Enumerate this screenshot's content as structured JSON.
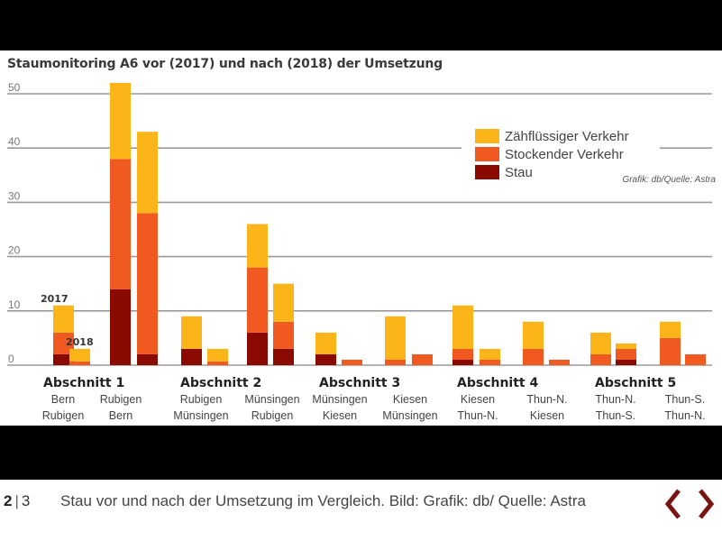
{
  "chart_data": {
    "type": "bar",
    "stacked": true,
    "title": "Staumonitoring A6 vor (2017) und nach (2018) der Umsetzung",
    "xlabel": "",
    "ylabel": "",
    "ylim": [
      0,
      50
    ],
    "yticks": [
      0,
      10,
      20,
      30,
      40,
      50
    ],
    "grid": true,
    "legend_position": "top-right",
    "source_note": "Grafik: db/Quelle: Astra",
    "year_labels": {
      "before": "2017",
      "after": "2018"
    },
    "series": [
      {
        "name": "Stau",
        "color": "#8b0a00"
      },
      {
        "name": "Stockender Verkehr",
        "color": "#f05a20"
      },
      {
        "name": "Zähflüssiger Verkehr",
        "color": "#fbb519"
      }
    ],
    "legend_order": [
      "Zähflüssiger Verkehr",
      "Stockender Verkehr",
      "Stau"
    ],
    "sections": [
      {
        "label": "Abschnitt 1",
        "routes": [
          {
            "from": "Bern",
            "to": "Rubigen",
            "y2017": [
              2,
              4,
              5
            ],
            "y2018": [
              0,
              0.7,
              2.3
            ]
          },
          {
            "from": "Rubigen",
            "to": "Bern",
            "y2017": [
              14,
              24,
              14
            ],
            "y2018": [
              2,
              26,
              15
            ]
          }
        ]
      },
      {
        "label": "Abschnitt 2",
        "routes": [
          {
            "from": "Rubigen",
            "to": "Münsingen",
            "y2017": [
              3,
              0,
              6
            ],
            "y2018": [
              0,
              0.7,
              2.3
            ]
          },
          {
            "from": "Münsingen",
            "to": "Rubigen",
            "y2017": [
              6,
              12,
              8
            ],
            "y2018": [
              3,
              5,
              7
            ]
          }
        ]
      },
      {
        "label": "Abschnitt 3",
        "routes": [
          {
            "from": "Münsingen",
            "to": "Kiesen",
            "y2017": [
              2,
              0,
              4
            ],
            "y2018": [
              0,
              1,
              0
            ]
          },
          {
            "from": "Kiesen",
            "to": "Münsingen",
            "y2017": [
              0,
              1,
              8
            ],
            "y2018": [
              0,
              2,
              0
            ]
          }
        ]
      },
      {
        "label": "Abschnitt 4",
        "routes": [
          {
            "from": "Kiesen",
            "to": "Thun-N.",
            "y2017": [
              1,
              2,
              8
            ],
            "y2018": [
              0,
              1,
              2
            ]
          },
          {
            "from": "Thun-N.",
            "to": "Kiesen",
            "y2017": [
              0,
              3,
              5
            ],
            "y2018": [
              0,
              1,
              0
            ]
          }
        ]
      },
      {
        "label": "Abschnitt 5",
        "routes": [
          {
            "from": "Thun-N.",
            "to": "Thun-S.",
            "y2017": [
              0,
              2,
              4
            ],
            "y2018": [
              1,
              2,
              1
            ]
          },
          {
            "from": "Thun-S.",
            "to": "Thun-N.",
            "y2017": [
              0,
              5,
              3
            ],
            "y2018": [
              0,
              2,
              0
            ]
          }
        ]
      }
    ]
  },
  "caption": {
    "current_page": "2",
    "separator": "|",
    "total_pages": "3",
    "text": "Stau vor und nach der Umsetzung im Vergleich. Bild: Grafik: db/ Quelle: Astra"
  },
  "nav": {
    "prev_icon": "chevron-left-icon",
    "next_icon": "chevron-right-icon",
    "color": "#7a1414"
  }
}
